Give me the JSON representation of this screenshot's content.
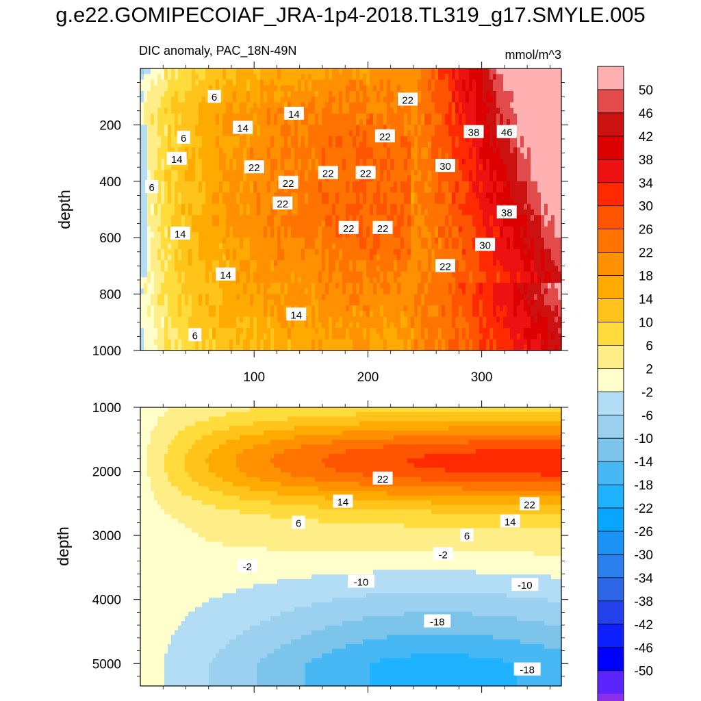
{
  "title": "g.e22.GOMIPECOIAF_JRA-1p4-2018.TL319_g17.SMYLE.005",
  "chart_data": [
    {
      "type": "heatmap",
      "panel": "upper",
      "subtitle": "DIC anomaly, PAC_18N-49N",
      "units": "mmol/m^3",
      "xlabel": "",
      "ylabel": "depth",
      "xlim": [
        0,
        370
      ],
      "ylim": [
        1000,
        0
      ],
      "xticks": [
        "100",
        "200",
        "300"
      ],
      "xtick_values": [
        100,
        200,
        300
      ],
      "yticks": [
        "200",
        "400",
        "600",
        "800",
        "1000"
      ],
      "ytick_values": [
        200,
        400,
        600,
        800,
        1000
      ],
      "contour_labels": [
        {
          "text": "6",
          "x": 65,
          "y": 100
        },
        {
          "text": "14",
          "x": 135,
          "y": 160
        },
        {
          "text": "22",
          "x": 235,
          "y": 110
        },
        {
          "text": "14",
          "x": 90,
          "y": 210
        },
        {
          "text": "6",
          "x": 38,
          "y": 245
        },
        {
          "text": "22",
          "x": 215,
          "y": 240
        },
        {
          "text": "38",
          "x": 293,
          "y": 225
        },
        {
          "text": "46",
          "x": 322,
          "y": 225
        },
        {
          "text": "14",
          "x": 32,
          "y": 320
        },
        {
          "text": "22",
          "x": 100,
          "y": 350
        },
        {
          "text": "22",
          "x": 165,
          "y": 370
        },
        {
          "text": "22",
          "x": 198,
          "y": 370
        },
        {
          "text": "30",
          "x": 268,
          "y": 345
        },
        {
          "text": "6",
          "x": 10,
          "y": 420
        },
        {
          "text": "22",
          "x": 130,
          "y": 405
        },
        {
          "text": "22",
          "x": 125,
          "y": 478
        },
        {
          "text": "38",
          "x": 322,
          "y": 510
        },
        {
          "text": "14",
          "x": 35,
          "y": 585
        },
        {
          "text": "22",
          "x": 183,
          "y": 565
        },
        {
          "text": "22",
          "x": 213,
          "y": 565
        },
        {
          "text": "30",
          "x": 303,
          "y": 625
        },
        {
          "text": "22",
          "x": 268,
          "y": 700
        },
        {
          "text": "14",
          "x": 75,
          "y": 730
        },
        {
          "text": "14",
          "x": 137,
          "y": 872
        },
        {
          "text": "6",
          "x": 48,
          "y": 945
        }
      ]
    },
    {
      "type": "heatmap",
      "panel": "lower",
      "xlabel": "",
      "ylabel": "depth",
      "xlim": [
        0,
        370
      ],
      "ylim": [
        5350,
        1000
      ],
      "yticks": [
        "1000",
        "2000",
        "3000",
        "4000",
        "5000"
      ],
      "ytick_values": [
        1000,
        2000,
        3000,
        4000,
        5000
      ],
      "contour_labels": [
        {
          "text": "22",
          "x": 213,
          "y": 2110
        },
        {
          "text": "14",
          "x": 178,
          "y": 2470
        },
        {
          "text": "22",
          "x": 342,
          "y": 2510
        },
        {
          "text": "14",
          "x": 325,
          "y": 2780
        },
        {
          "text": "6",
          "x": 139,
          "y": 2800
        },
        {
          "text": "6",
          "x": 287,
          "y": 3000
        },
        {
          "text": "-2",
          "x": 266,
          "y": 3290
        },
        {
          "text": "-2",
          "x": 94,
          "y": 3480
        },
        {
          "text": "-10",
          "x": 194,
          "y": 3720
        },
        {
          "text": "-10",
          "x": 338,
          "y": 3770
        },
        {
          "text": "-18",
          "x": 261,
          "y": 4340
        },
        {
          "text": "-18",
          "x": 340,
          "y": 5090
        }
      ]
    }
  ],
  "colorbar": {
    "labels": [
      "50",
      "46",
      "42",
      "38",
      "34",
      "30",
      "26",
      "22",
      "18",
      "14",
      "10",
      "6",
      "2",
      "-2",
      "-6",
      "-10",
      "-14",
      "-18",
      "-22",
      "-26",
      "-30",
      "-34",
      "-38",
      "-42",
      "-46",
      "-50"
    ],
    "colors": [
      "#ffb0b0",
      "#e24b4b",
      "#cc1111",
      "#dd0000",
      "#ee1111",
      "#ff2a00",
      "#ff5500",
      "#ff7400",
      "#ff9000",
      "#ffaa00",
      "#ffc31a",
      "#ffdc3c",
      "#ffee88",
      "#ffffcc",
      "#b3dcf5",
      "#9bd0ef",
      "#7cc4ea",
      "#48b8f4",
      "#1fb3ff",
      "#08a6ff",
      "#1b93f5",
      "#2a7fed",
      "#2d66e4",
      "#2440ea",
      "#0f20ff",
      "#0000ff",
      "#5a25ff",
      "#8c2fe8"
    ]
  }
}
